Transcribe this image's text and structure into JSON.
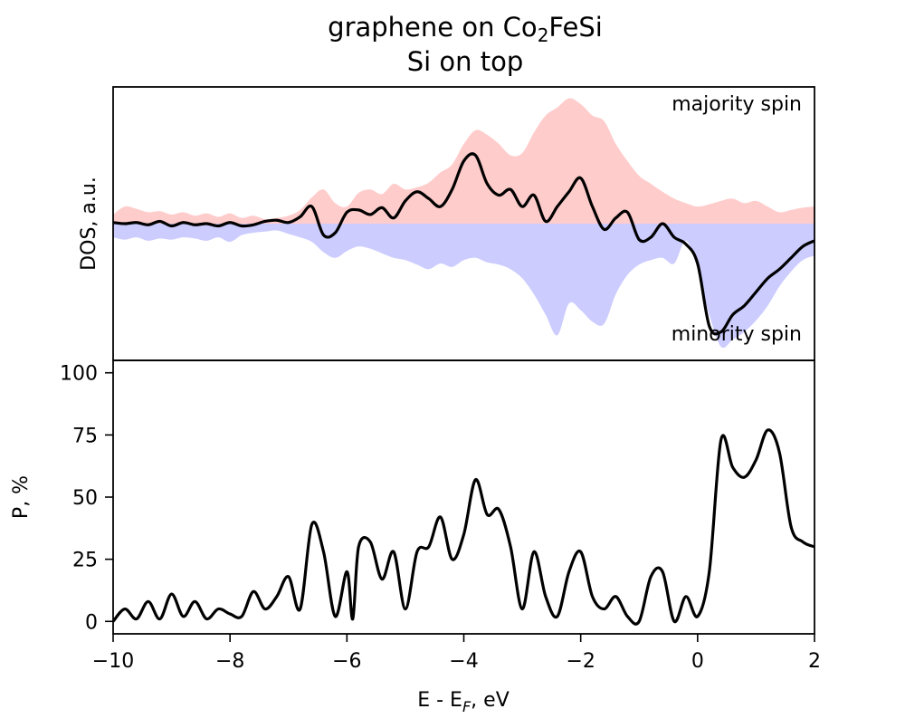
{
  "chart_data": [
    {
      "type": "area",
      "panel": "top",
      "title_line1_base": "graphene on Co",
      "title_line1_sub": "2",
      "title_line1_tail": "FeSi",
      "title_line2": "Si on top",
      "ylabel": "DOS, a.u.",
      "xlim": [
        -10,
        2
      ],
      "ylim": [
        -1.2,
        1.2
      ],
      "yticks_shown": false,
      "annotations": {
        "majority": "majority spin",
        "minority": "minority spin"
      },
      "colors": {
        "majority": "#ffcccc",
        "minority": "#ccccff",
        "total": "#000000"
      },
      "series": [
        {
          "name": "majority spin",
          "x": [
            -10,
            -9.8,
            -9.6,
            -9.4,
            -9.2,
            -9.0,
            -8.8,
            -8.6,
            -8.4,
            -8.2,
            -8.0,
            -7.8,
            -7.6,
            -7.4,
            -7.2,
            -7.0,
            -6.8,
            -6.6,
            -6.4,
            -6.2,
            -6.0,
            -5.8,
            -5.6,
            -5.4,
            -5.2,
            -5.0,
            -4.8,
            -4.6,
            -4.4,
            -4.2,
            -4.0,
            -3.8,
            -3.6,
            -3.4,
            -3.2,
            -3.0,
            -2.8,
            -2.6,
            -2.4,
            -2.2,
            -2.0,
            -1.8,
            -1.6,
            -1.4,
            -1.2,
            -1.0,
            -0.8,
            -0.6,
            -0.4,
            -0.2,
            0.0,
            0.2,
            0.4,
            0.6,
            0.8,
            1.0,
            1.2,
            1.4,
            1.6,
            1.8,
            2.0
          ],
          "values": [
            0.08,
            0.15,
            0.13,
            0.1,
            0.11,
            0.08,
            0.1,
            0.07,
            0.09,
            0.06,
            0.09,
            0.05,
            0.07,
            0.04,
            0.05,
            0.07,
            0.12,
            0.23,
            0.3,
            0.18,
            0.15,
            0.27,
            0.3,
            0.26,
            0.35,
            0.3,
            0.32,
            0.36,
            0.45,
            0.52,
            0.7,
            0.82,
            0.78,
            0.7,
            0.6,
            0.62,
            0.8,
            0.95,
            1.02,
            1.1,
            1.05,
            0.95,
            0.9,
            0.7,
            0.55,
            0.42,
            0.35,
            0.28,
            0.22,
            0.18,
            0.15,
            0.17,
            0.2,
            0.22,
            0.18,
            0.2,
            0.15,
            0.1,
            0.12,
            0.14,
            0.15
          ]
        },
        {
          "name": "minority spin",
          "x": [
            -10,
            -9.8,
            -9.6,
            -9.4,
            -9.2,
            -9.0,
            -8.8,
            -8.6,
            -8.4,
            -8.2,
            -8.0,
            -7.8,
            -7.6,
            -7.4,
            -7.2,
            -7.0,
            -6.8,
            -6.6,
            -6.4,
            -6.2,
            -6.0,
            -5.8,
            -5.6,
            -5.4,
            -5.2,
            -5.0,
            -4.8,
            -4.6,
            -4.4,
            -4.2,
            -4.0,
            -3.8,
            -3.6,
            -3.4,
            -3.2,
            -3.0,
            -2.8,
            -2.6,
            -2.4,
            -2.2,
            -2.0,
            -1.8,
            -1.6,
            -1.4,
            -1.2,
            -1.0,
            -0.8,
            -0.6,
            -0.4,
            -0.2,
            0.0,
            0.2,
            0.4,
            0.6,
            0.8,
            1.0,
            1.2,
            1.4,
            1.6,
            1.8,
            2.0
          ],
          "values": [
            -0.12,
            -0.14,
            -0.12,
            -0.15,
            -0.13,
            -0.14,
            -0.12,
            -0.13,
            -0.15,
            -0.12,
            -0.16,
            -0.1,
            -0.08,
            -0.07,
            -0.06,
            -0.09,
            -0.12,
            -0.16,
            -0.25,
            -0.3,
            -0.24,
            -0.2,
            -0.22,
            -0.26,
            -0.3,
            -0.32,
            -0.36,
            -0.4,
            -0.35,
            -0.38,
            -0.32,
            -0.3,
            -0.34,
            -0.36,
            -0.4,
            -0.48,
            -0.62,
            -0.8,
            -0.98,
            -0.7,
            -0.76,
            -0.86,
            -0.88,
            -0.62,
            -0.45,
            -0.36,
            -0.32,
            -0.3,
            -0.35,
            -0.15,
            -0.4,
            -0.8,
            -1.08,
            -1.02,
            -0.95,
            -0.85,
            -0.72,
            -0.55,
            -0.42,
            -0.32,
            -0.28
          ]
        },
        {
          "name": "total",
          "x": [
            -10,
            -9.8,
            -9.6,
            -9.4,
            -9.2,
            -9.0,
            -8.8,
            -8.6,
            -8.4,
            -8.2,
            -8.0,
            -7.8,
            -7.6,
            -7.4,
            -7.2,
            -7.0,
            -6.8,
            -6.6,
            -6.4,
            -6.2,
            -6.0,
            -5.8,
            -5.6,
            -5.4,
            -5.2,
            -5.0,
            -4.8,
            -4.6,
            -4.4,
            -4.2,
            -4.0,
            -3.8,
            -3.6,
            -3.4,
            -3.2,
            -3.0,
            -2.8,
            -2.6,
            -2.4,
            -2.2,
            -2.0,
            -1.8,
            -1.6,
            -1.4,
            -1.2,
            -1.0,
            -0.8,
            -0.6,
            -0.4,
            -0.2,
            0.0,
            0.2,
            0.4,
            0.6,
            0.8,
            1.0,
            1.2,
            1.4,
            1.6,
            1.8,
            2.0
          ],
          "values": [
            0.01,
            0.0,
            0.01,
            -0.01,
            0.02,
            -0.02,
            0.01,
            -0.01,
            0.0,
            -0.02,
            0.01,
            -0.02,
            -0.01,
            0.02,
            0.03,
            0.01,
            0.06,
            0.15,
            -0.1,
            -0.08,
            0.1,
            0.12,
            0.08,
            0.14,
            0.05,
            0.2,
            0.28,
            0.22,
            0.15,
            0.3,
            0.55,
            0.6,
            0.35,
            0.25,
            0.3,
            0.15,
            0.25,
            0.02,
            0.15,
            0.28,
            0.4,
            0.15,
            -0.05,
            0.05,
            0.1,
            -0.14,
            -0.12,
            0.0,
            -0.12,
            -0.18,
            -0.35,
            -0.9,
            -0.95,
            -0.8,
            -0.72,
            -0.6,
            -0.48,
            -0.4,
            -0.3,
            -0.2,
            -0.15
          ]
        }
      ]
    },
    {
      "type": "line",
      "panel": "bottom",
      "xlabel_base": "E - E",
      "xlabel_sub": "F",
      "xlabel_tail": ", eV",
      "ylabel": "P, %",
      "xlim": [
        -10,
        2
      ],
      "ylim": [
        -5,
        105
      ],
      "xticks": [
        -10,
        -8,
        -6,
        -4,
        -2,
        0,
        2
      ],
      "xtick_labels": [
        "−10",
        "−8",
        "−6",
        "−4",
        "−2",
        "0",
        "2"
      ],
      "yticks": [
        0,
        25,
        50,
        75,
        100
      ],
      "ytick_labels": [
        "0",
        "25",
        "50",
        "75",
        "100"
      ],
      "series": [
        {
          "name": "P",
          "color": "#000000",
          "x": [
            -10,
            -9.8,
            -9.6,
            -9.4,
            -9.2,
            -9.0,
            -8.8,
            -8.6,
            -8.4,
            -8.2,
            -8.0,
            -7.8,
            -7.6,
            -7.4,
            -7.2,
            -7.0,
            -6.8,
            -6.6,
            -6.4,
            -6.2,
            -6.0,
            -5.9,
            -5.8,
            -5.6,
            -5.4,
            -5.2,
            -5.0,
            -4.8,
            -4.6,
            -4.4,
            -4.2,
            -4.0,
            -3.8,
            -3.6,
            -3.4,
            -3.2,
            -3.0,
            -2.8,
            -2.6,
            -2.4,
            -2.2,
            -2.0,
            -1.8,
            -1.6,
            -1.4,
            -1.2,
            -1.0,
            -0.8,
            -0.6,
            -0.4,
            -0.2,
            0.0,
            0.2,
            0.4,
            0.6,
            0.8,
            1.0,
            1.2,
            1.4,
            1.6,
            1.8,
            2.0
          ],
          "values": [
            0,
            5,
            1,
            8,
            1,
            11,
            2,
            8,
            1,
            5,
            3,
            2,
            12,
            5,
            10,
            18,
            5,
            39,
            28,
            2,
            20,
            1,
            30,
            32,
            17,
            28,
            5,
            28,
            30,
            42,
            25,
            35,
            57,
            43,
            45,
            30,
            5,
            28,
            10,
            2,
            20,
            28,
            10,
            5,
            10,
            2,
            0,
            18,
            20,
            0,
            10,
            2,
            20,
            73,
            62,
            58,
            65,
            77,
            68,
            38,
            32,
            30
          ]
        }
      ]
    }
  ]
}
